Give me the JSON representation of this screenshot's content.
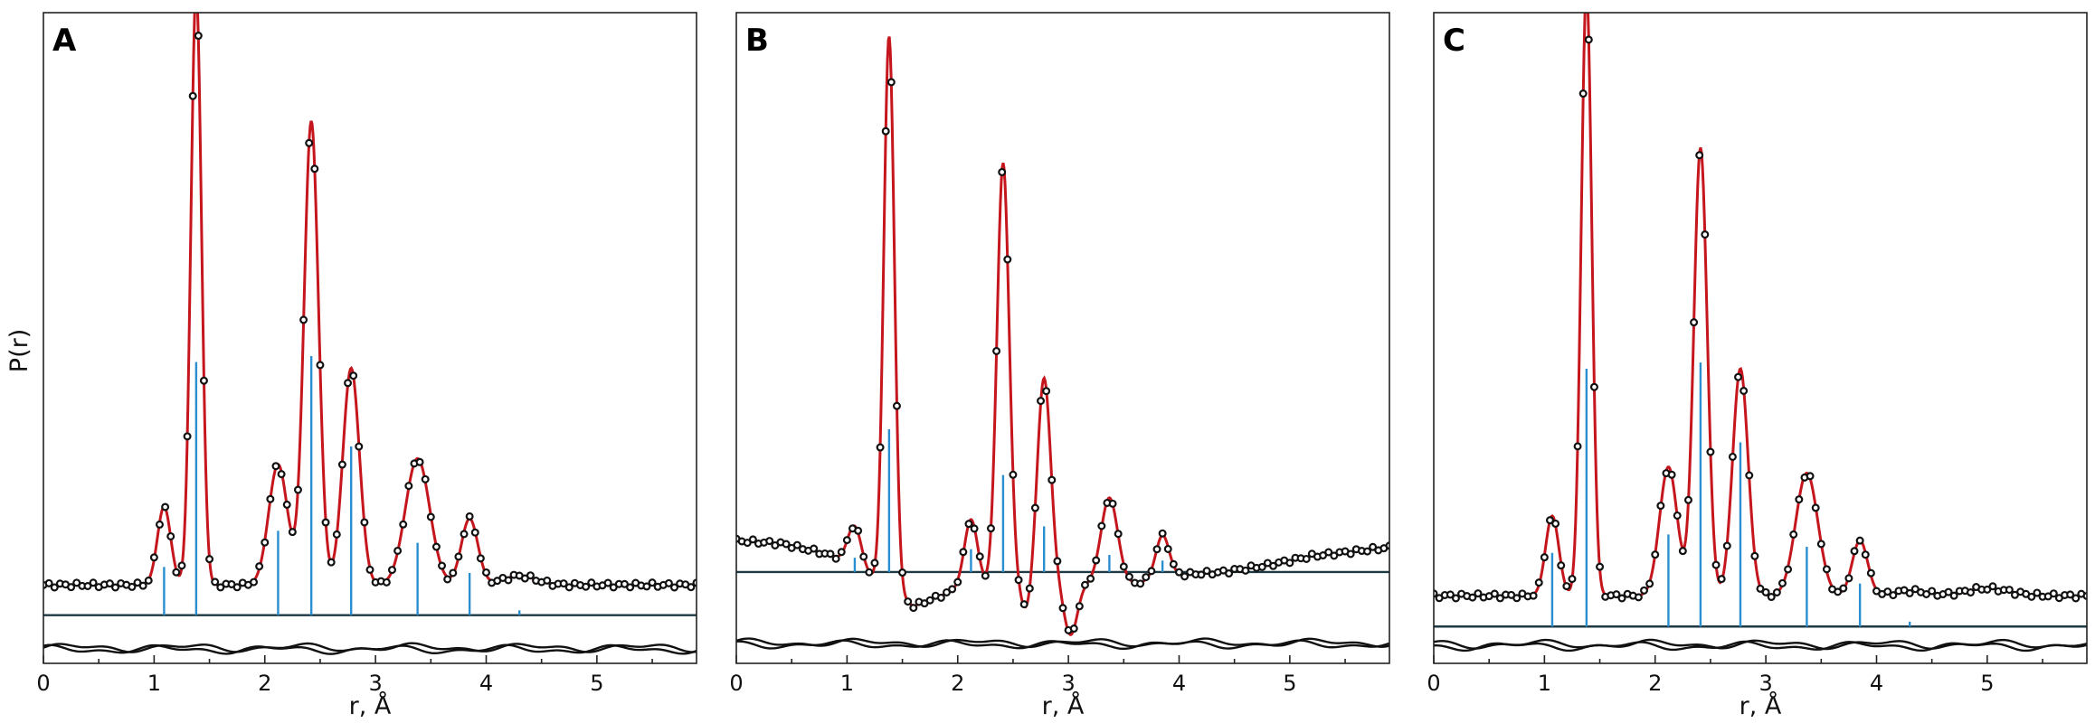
{
  "chart_data": [
    {
      "type": "line",
      "panel_label": "A",
      "xlabel": "r, Å",
      "ylabel": "P(r)",
      "xlim": [
        0,
        5.9
      ],
      "x_ticks": [
        "0",
        "1",
        "2",
        "3",
        "4",
        "5"
      ],
      "ylim": [
        -0.08,
        1.0
      ],
      "baseline_level": 0.0,
      "difference_offset": -0.055,
      "offset": 0.05,
      "peaks": [
        {
          "x": 1.09,
          "h": 0.13,
          "w": 0.06
        },
        {
          "x": 1.38,
          "h": 0.99,
          "w": 0.048
        },
        {
          "x": 2.12,
          "h": 0.2,
          "w": 0.085
        },
        {
          "x": 2.42,
          "h": 0.77,
          "w": 0.065
        },
        {
          "x": 2.78,
          "h": 0.36,
          "w": 0.075
        },
        {
          "x": 3.38,
          "h": 0.21,
          "w": 0.11
        },
        {
          "x": 3.85,
          "h": 0.11,
          "w": 0.075
        },
        {
          "x": 4.3,
          "h": 0.015,
          "w": 0.15
        }
      ],
      "sticks": [
        {
          "x": 1.09,
          "h": 0.08
        },
        {
          "x": 1.38,
          "h": 0.42
        },
        {
          "x": 2.12,
          "h": 0.14
        },
        {
          "x": 2.42,
          "h": 0.43
        },
        {
          "x": 2.78,
          "h": 0.28
        },
        {
          "x": 3.38,
          "h": 0.12
        },
        {
          "x": 3.85,
          "h": 0.07
        },
        {
          "x": 4.3,
          "h": 0.008
        }
      ]
    },
    {
      "type": "line",
      "panel_label": "B",
      "xlabel": "r, Å",
      "xlim": [
        0,
        5.9
      ],
      "x_ticks": [
        "0",
        "1",
        "2",
        "3",
        "4",
        "5"
      ],
      "ylim": [
        -0.16,
        0.98
      ],
      "baseline_level": 0.0,
      "difference_offset": -0.125,
      "offset": 0.0,
      "background": [
        [
          0.0,
          0.055
        ],
        [
          0.4,
          0.05
        ],
        [
          0.75,
          0.035
        ],
        [
          1.0,
          0.02
        ],
        [
          1.3,
          -0.02
        ],
        [
          1.6,
          -0.06
        ],
        [
          2.0,
          -0.03
        ],
        [
          2.6,
          -0.02
        ],
        [
          3.0,
          -0.02
        ],
        [
          3.6,
          -0.02
        ],
        [
          4.0,
          -0.005
        ],
        [
          4.4,
          0.0
        ],
        [
          4.8,
          0.012
        ],
        [
          5.2,
          0.028
        ],
        [
          5.9,
          0.043
        ]
      ],
      "peaks": [
        {
          "x": 1.07,
          "h": 0.07,
          "w": 0.06
        },
        {
          "x": 1.38,
          "h": 0.97,
          "w": 0.048
        },
        {
          "x": 2.12,
          "h": 0.12,
          "w": 0.06
        },
        {
          "x": 2.41,
          "h": 0.74,
          "w": 0.055
        },
        {
          "x": 2.78,
          "h": 0.36,
          "w": 0.06
        },
        {
          "x": 3.37,
          "h": 0.15,
          "w": 0.075
        },
        {
          "x": 3.85,
          "h": 0.075,
          "w": 0.06
        },
        {
          "x": 2.62,
          "h": -0.05,
          "w": 0.05
        },
        {
          "x": 3.02,
          "h": -0.09,
          "w": 0.06
        }
      ],
      "sticks": [
        {
          "x": 1.07,
          "h": 0.025
        },
        {
          "x": 1.38,
          "h": 0.25
        },
        {
          "x": 2.12,
          "h": 0.04
        },
        {
          "x": 2.41,
          "h": 0.17
        },
        {
          "x": 2.78,
          "h": 0.08
        },
        {
          "x": 3.37,
          "h": 0.03
        },
        {
          "x": 3.85,
          "h": 0.02
        }
      ]
    },
    {
      "type": "line",
      "panel_label": "C",
      "xlabel": "r, Å",
      "xlim": [
        0,
        5.9
      ],
      "x_ticks": [
        "0",
        "1",
        "2",
        "3",
        "4",
        "5"
      ],
      "ylim": [
        -0.06,
        1.0
      ],
      "baseline_level": 0.0,
      "difference_offset": -0.03,
      "offset": 0.05,
      "peaks": [
        {
          "x": 1.07,
          "h": 0.13,
          "w": 0.06
        },
        {
          "x": 1.38,
          "h": 0.99,
          "w": 0.048
        },
        {
          "x": 2.12,
          "h": 0.21,
          "w": 0.08
        },
        {
          "x": 2.41,
          "h": 0.73,
          "w": 0.06
        },
        {
          "x": 2.77,
          "h": 0.37,
          "w": 0.07
        },
        {
          "x": 3.37,
          "h": 0.2,
          "w": 0.1
        },
        {
          "x": 3.85,
          "h": 0.09,
          "w": 0.07
        },
        {
          "x": 4.3,
          "h": 0.008,
          "w": 0.15
        },
        {
          "x": 5.0,
          "h": 0.012,
          "w": 0.2
        }
      ],
      "sticks": [
        {
          "x": 1.07,
          "h": 0.12
        },
        {
          "x": 1.38,
          "h": 0.42
        },
        {
          "x": 2.12,
          "h": 0.15
        },
        {
          "x": 2.41,
          "h": 0.43
        },
        {
          "x": 2.77,
          "h": 0.3
        },
        {
          "x": 3.37,
          "h": 0.13
        },
        {
          "x": 3.85,
          "h": 0.07
        },
        {
          "x": 4.3,
          "h": 0.008
        }
      ]
    }
  ]
}
